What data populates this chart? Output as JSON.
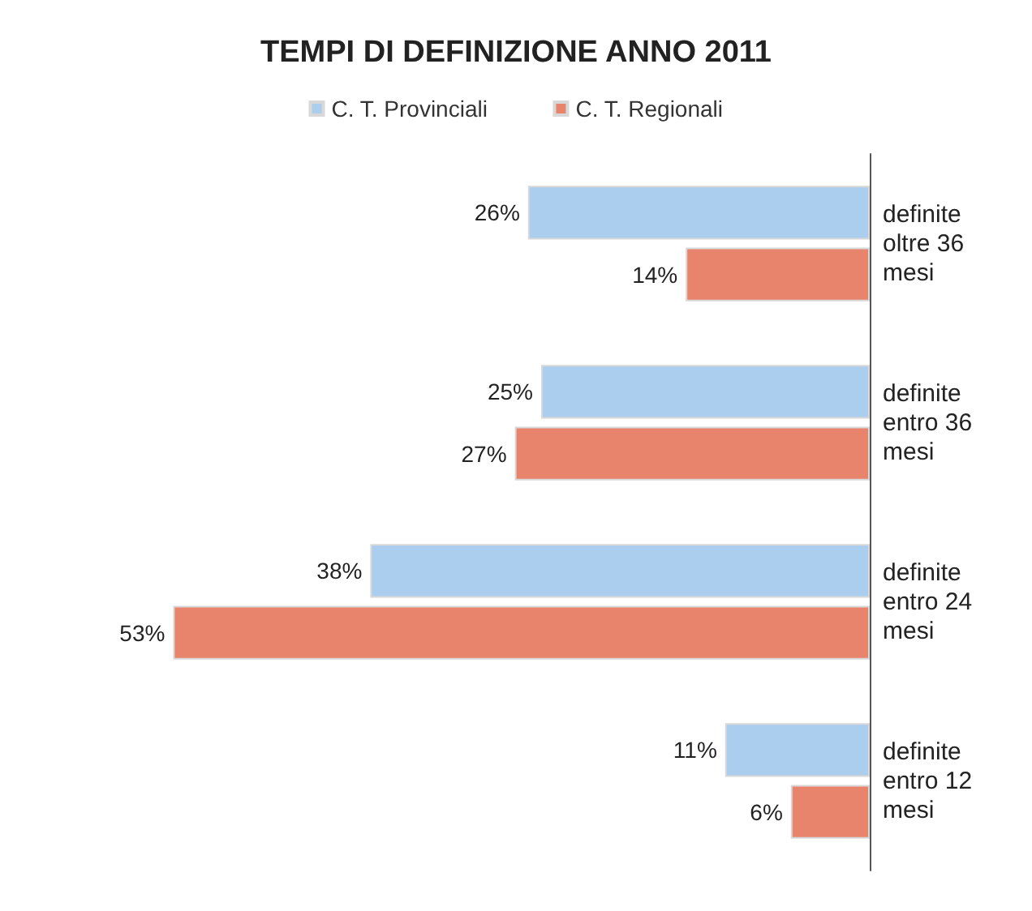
{
  "chart_data": {
    "type": "bar",
    "title": "TEMPI DI DEFINIZIONE ANNO 2011",
    "orientation": "horizontal",
    "categories": [
      "definite oltre 36 mesi",
      "definite entro 36 mesi",
      "definite entro 24 mesi",
      "definite entro 12 mesi"
    ],
    "series": [
      {
        "name": "C. T. Provinciali",
        "color": "#abcdee",
        "values": [
          26,
          25,
          38,
          11
        ],
        "value_labels": [
          "26%",
          "25%",
          "38%",
          "11%"
        ]
      },
      {
        "name": "C. T. Regionali",
        "color": "#e8846c",
        "values": [
          14,
          27,
          53,
          6
        ],
        "value_labels": [
          "14%",
          "27%",
          "53%",
          "6%"
        ]
      }
    ],
    "legend": "top",
    "grid": false
  }
}
